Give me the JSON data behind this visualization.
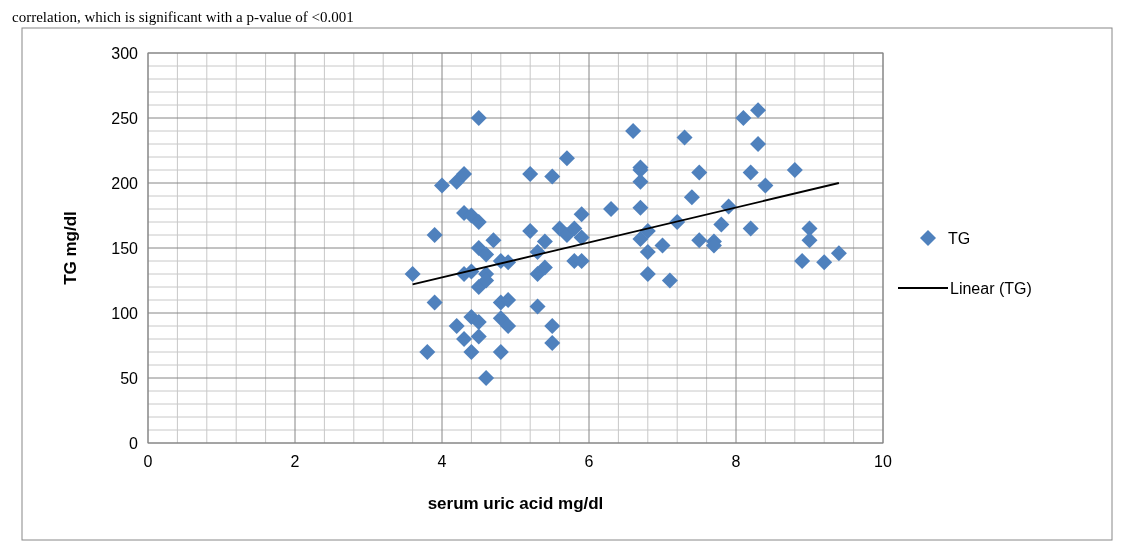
{
  "chart_data": {
    "type": "scatter",
    "xlabel": "serum uric acid mg/dl",
    "ylabel": "TG mg/dl",
    "annotations": [
      "correlation, which is significant with a p-value of <0.001"
    ],
    "xlim": [
      0,
      10
    ],
    "ylim": [
      0,
      300
    ],
    "xticks": [
      0,
      2,
      4,
      6,
      8,
      10
    ],
    "yticks": [
      0,
      50,
      100,
      150,
      200,
      250,
      300
    ],
    "grid": true,
    "legend": "right",
    "series": [
      {
        "name": "TG",
        "marker": "diamond",
        "color": "#4f81bd",
        "x": [
          3.6,
          3.8,
          3.9,
          3.9,
          4.0,
          4.2,
          4.2,
          4.3,
          4.3,
          4.3,
          4.3,
          4.4,
          4.4,
          4.4,
          4.4,
          4.5,
          4.5,
          4.5,
          4.5,
          4.5,
          4.5,
          4.6,
          4.6,
          4.6,
          4.6,
          4.7,
          4.8,
          4.8,
          4.8,
          4.8,
          4.9,
          4.9,
          4.9,
          5.2,
          5.2,
          5.3,
          5.3,
          5.3,
          5.4,
          5.4,
          5.5,
          5.5,
          5.5,
          5.6,
          5.7,
          5.7,
          5.8,
          5.8,
          5.9,
          5.9,
          5.9,
          6.3,
          6.6,
          6.7,
          6.7,
          6.7,
          6.7,
          6.7,
          6.8,
          6.8,
          6.8,
          7.0,
          7.1,
          7.2,
          7.3,
          7.4,
          7.5,
          7.5,
          7.7,
          7.7,
          7.8,
          7.9,
          8.1,
          8.2,
          8.2,
          8.3,
          8.3,
          8.4,
          8.8,
          8.9,
          9.0,
          9.0,
          9.2,
          9.4
        ],
        "values": [
          130,
          70,
          108,
          160,
          198,
          201,
          90,
          207,
          177,
          130,
          80,
          175,
          132,
          97,
          70,
          250,
          170,
          150,
          120,
          93,
          82,
          145,
          130,
          125,
          50,
          156,
          140,
          108,
          96,
          70,
          139,
          110,
          90,
          207,
          163,
          147,
          130,
          105,
          155,
          135,
          205,
          90,
          77,
          165,
          219,
          160,
          165,
          140,
          176,
          158,
          140,
          180,
          240,
          212,
          210,
          201,
          181,
          157,
          163,
          147,
          130,
          152,
          125,
          170,
          235,
          189,
          208,
          156,
          155,
          152,
          168,
          182,
          250,
          208,
          165,
          256,
          230,
          198,
          210,
          140,
          165,
          156,
          139,
          146
        ]
      },
      {
        "name": "Linear (TG)",
        "type": "line",
        "color": "#000000",
        "marker": "none",
        "x": [
          3.6,
          9.4
        ],
        "values": [
          122,
          200
        ]
      }
    ]
  }
}
